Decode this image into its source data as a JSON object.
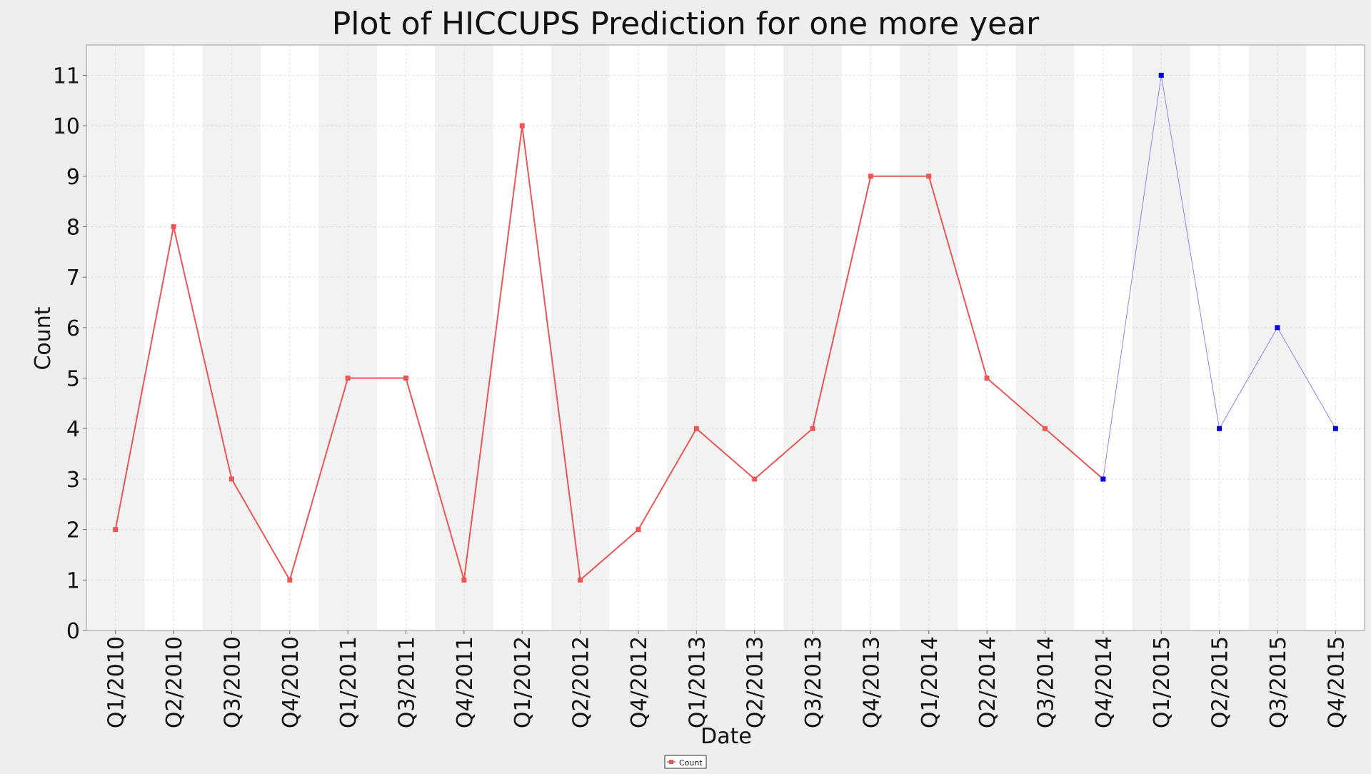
{
  "chart_data": {
    "type": "line",
    "title": "Plot of HICCUPS Prediction for one more year",
    "xlabel": "Date",
    "ylabel": "Count",
    "ylim": [
      0,
      11.6
    ],
    "yticks": [
      0,
      1,
      2,
      3,
      4,
      5,
      6,
      7,
      8,
      9,
      10,
      11
    ],
    "grid": true,
    "legend_position": "bottom-center",
    "categories": [
      "Q1/2010",
      "Q2/2010",
      "Q3/2010",
      "Q4/2010",
      "Q1/2011",
      "Q3/2011",
      "Q4/2011",
      "Q1/2012",
      "Q2/2012",
      "Q4/2012",
      "Q1/2013",
      "Q2/2013",
      "Q3/2013",
      "Q4/2013",
      "Q1/2014",
      "Q2/2014",
      "Q3/2014",
      "Q4/2014",
      "Q1/2015",
      "Q2/2015",
      "Q3/2015",
      "Q4/2015"
    ],
    "series": [
      {
        "name": "Count",
        "color": "#ee5555",
        "values": [
          2,
          8,
          3,
          1,
          5,
          5,
          1,
          10,
          1,
          2,
          4,
          3,
          4,
          9,
          9,
          5,
          4,
          3,
          null,
          null,
          null,
          null
        ]
      },
      {
        "color": "#0000dd",
        "line_color": "#8888ee",
        "values": [
          null,
          null,
          null,
          null,
          null,
          null,
          null,
          null,
          null,
          null,
          null,
          null,
          null,
          null,
          null,
          null,
          null,
          3,
          11,
          4,
          6,
          4
        ]
      }
    ],
    "colors": {
      "background": "#eeeeee",
      "plot_band_a": "#f2f2f2",
      "plot_band_b": "#ffffff",
      "gridline": "#dddddd",
      "text": "#111111"
    }
  }
}
